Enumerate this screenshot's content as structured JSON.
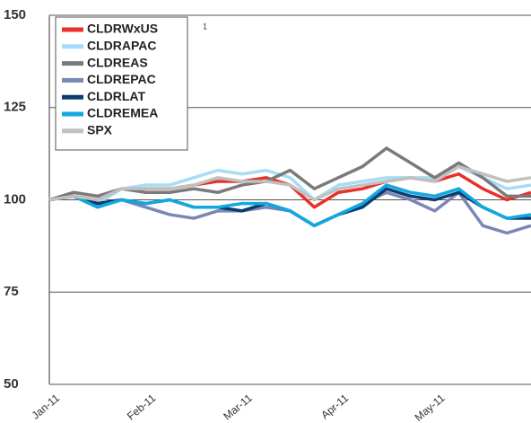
{
  "chart_data": {
    "type": "line",
    "categories": [
      "Jan-11",
      null,
      null,
      null,
      "Feb-11",
      null,
      null,
      null,
      "Mar-11",
      null,
      null,
      null,
      "Apr-11",
      null,
      null,
      null,
      "May-11",
      null,
      null,
      null,
      null
    ],
    "series": [
      {
        "name": "CLDRWxUS",
        "color": "#e8312b",
        "values": [
          100,
          101,
          100,
          103,
          103,
          103,
          104,
          105,
          105,
          106,
          104,
          98,
          102,
          103,
          105,
          106,
          105,
          107,
          103,
          100,
          102
        ]
      },
      {
        "name": "CLDRAPAC",
        "color": "#a6dcf5",
        "values": [
          100,
          101,
          99,
          103,
          104,
          104,
          106,
          108,
          107,
          108,
          106,
          100,
          104,
          105,
          106,
          106,
          106,
          109,
          106,
          103,
          104
        ]
      },
      {
        "name": "CLDREAS",
        "color": "#7a7a7a",
        "values": [
          100,
          102,
          101,
          103,
          102,
          102,
          103,
          102,
          104,
          105,
          108,
          103,
          106,
          109,
          114,
          110,
          106,
          110,
          106,
          101,
          101
        ]
      },
      {
        "name": "CLDREPAC",
        "color": "#7b86b4",
        "values": [
          100,
          101,
          98,
          100,
          98,
          96,
          95,
          97,
          97,
          98,
          97,
          93,
          96,
          99,
          102,
          100,
          97,
          102,
          93,
          91,
          93
        ]
      },
      {
        "name": "CLDRLAT",
        "color": "#0d3b6e",
        "values": [
          100,
          101,
          99,
          100,
          99,
          100,
          98,
          98,
          97,
          99,
          97,
          93,
          96,
          98,
          103,
          101,
          100,
          102,
          98,
          95,
          95
        ]
      },
      {
        "name": "CLDREMEA",
        "color": "#10a8e0",
        "values": [
          100,
          101,
          98,
          100,
          99,
          100,
          98,
          98,
          99,
          99,
          97,
          93,
          96,
          99,
          104,
          102,
          101,
          103,
          98,
          95,
          96
        ]
      },
      {
        "name": "SPX",
        "color": "#c0c0c0",
        "values": [
          100,
          101,
          100,
          103,
          103,
          103,
          104,
          106,
          105,
          105,
          104,
          100,
          103,
          104,
          105,
          106,
          105,
          109,
          107,
          105,
          106
        ]
      }
    ],
    "ylim": [
      50,
      150
    ],
    "yticks": [
      50,
      75,
      100,
      125,
      150
    ],
    "grid": true,
    "annotation": "1"
  }
}
